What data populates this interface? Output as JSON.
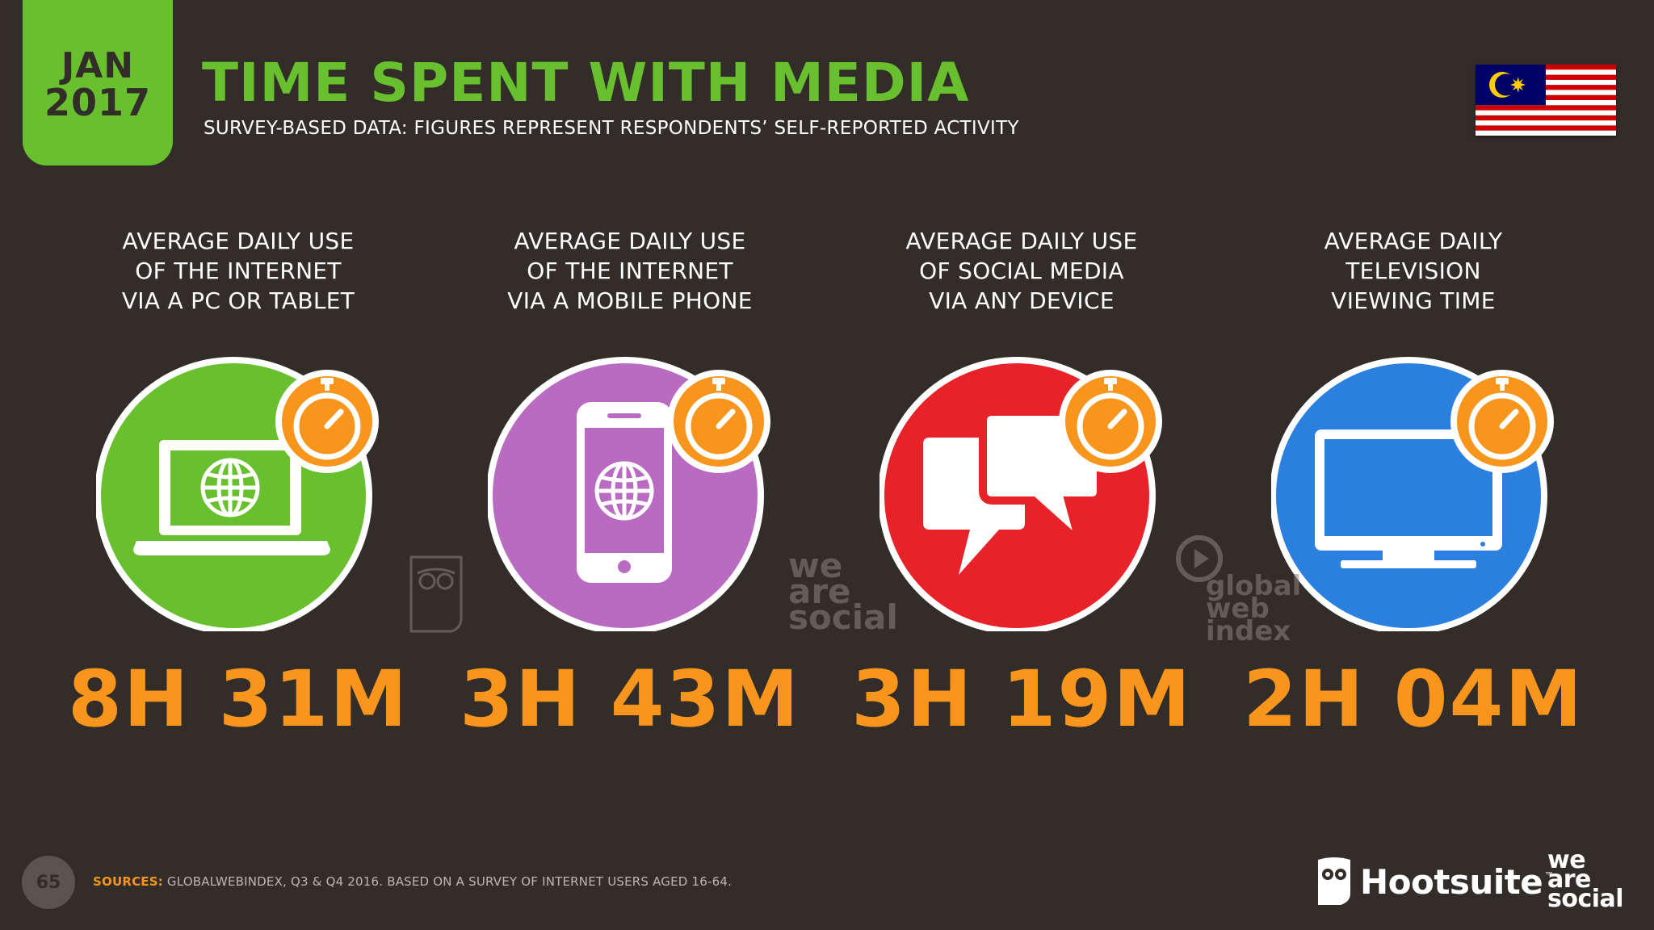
{
  "header": {
    "date_month": "JAN",
    "date_year": "2017",
    "title": "TIME SPENT WITH MEDIA",
    "subtitle": "SURVEY-BASED DATA: FIGURES REPRESENT RESPONDENTS’ SELF-REPORTED ACTIVITY"
  },
  "panels": [
    {
      "label": "AVERAGE DAILY USE\nOF THE INTERNET\nVIA A PC OR TABLET",
      "value": "8H 31M",
      "color": "#68c02e",
      "icon": "laptop-globe-icon"
    },
    {
      "label": "AVERAGE DAILY USE\nOF THE INTERNET\nVIA A MOBILE PHONE",
      "value": "3H 43M",
      "color": "#b96bc2",
      "icon": "mobile-globe-icon"
    },
    {
      "label": "AVERAGE DAILY USE\nOF SOCIAL MEDIA\nVIA ANY DEVICE",
      "value": "3H 19M",
      "color": "#e82229",
      "icon": "speech-bubbles-icon"
    },
    {
      "label": "AVERAGE DAILY\nTELEVISION\nVIEWING TIME",
      "value": "2H 04M",
      "color": "#2a7fdf",
      "icon": "television-icon"
    }
  ],
  "watermarks": {
    "we_are_social": "we\nare\nsocial",
    "global_web_index": "global\nweb\nindex"
  },
  "footer": {
    "page_number": "65",
    "sources_label": "SOURCES:",
    "sources_text": "GLOBALWEBINDEX, Q3 & Q4 2016. BASED ON A SURVEY OF INTERNET USERS AGED 16-64.",
    "brand_hootsuite": "Hootsuite",
    "brand_tm": "™",
    "brand_was_1": "we",
    "brand_was_2": "are",
    "brand_was_3": "social"
  },
  "colors": {
    "background": "#332d2a",
    "accent_green": "#68c02e",
    "accent_orange": "#f7951d"
  }
}
